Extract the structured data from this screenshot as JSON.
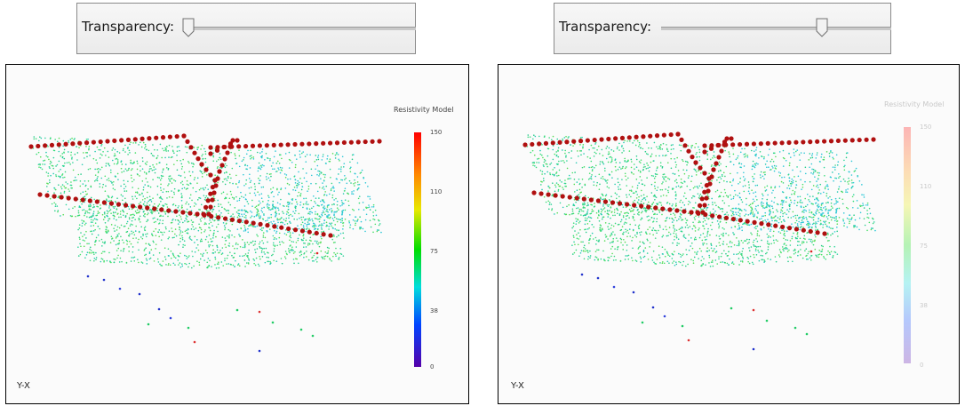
{
  "left_view": {
    "transparency_label": "Transparency:",
    "transparency_value": 0.0,
    "legend": {
      "title": "Resistivity Model",
      "ticks": [
        "150",
        "110",
        "75",
        "38",
        "0"
      ]
    },
    "axes_label": "Y-X",
    "colors": {
      "electrode": "#b01010",
      "low": "#5500aa",
      "high": "#ff0000",
      "mid": "#00dd66"
    }
  },
  "right_view": {
    "transparency_label": "Transparency:",
    "transparency_value": 0.8,
    "legend": {
      "title": "Resistivity Model",
      "ticks": [
        "150",
        "110",
        "75",
        "38",
        "0"
      ]
    },
    "axes_label": "Y-X"
  }
}
